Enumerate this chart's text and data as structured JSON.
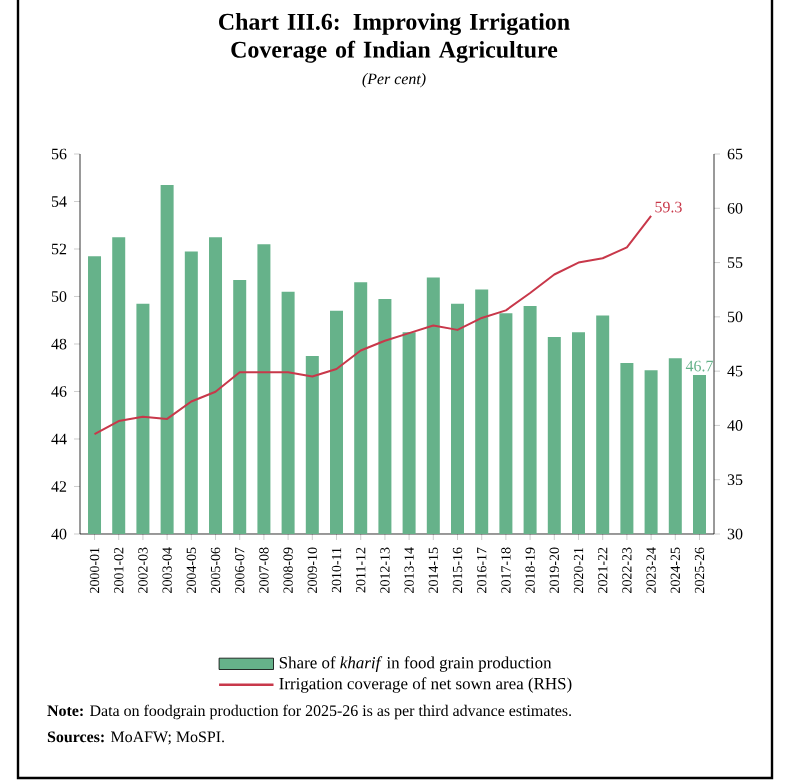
{
  "chart_data": {
    "type": "bar",
    "title": "Chart III.6: Improving Irrigation Coverage of Indian Agriculture",
    "subtitle": "(Per cent)",
    "categories": [
      "2000-01",
      "2001-02",
      "2002-03",
      "2003-04",
      "2004-05",
      "2005-06",
      "2006-07",
      "2007-08",
      "2008-09",
      "2009-10",
      "2010-11",
      "2011-12",
      "2012-13",
      "2013-14",
      "2014-15",
      "2015-16",
      "2016-17",
      "2017-18",
      "2018-19",
      "2019-20",
      "2020-21",
      "2021-22",
      "2022-23",
      "2023-24",
      "2024-25",
      "2025-26"
    ],
    "series": [
      {
        "name": "Share of *kharif* in food grain production",
        "color": "#66b28a",
        "values": [
          51.7,
          52.5,
          49.7,
          54.7,
          51.9,
          52.5,
          50.7,
          52.2,
          50.2,
          47.5,
          49.4,
          50.6,
          49.9,
          48.5,
          50.8,
          49.7,
          50.3,
          49.3,
          49.6,
          48.3,
          48.5,
          49.2,
          47.2,
          46.9,
          47.4,
          46.7
        ],
        "value_labels": [
          null,
          null,
          null,
          null,
          null,
          null,
          null,
          null,
          null,
          null,
          null,
          null,
          null,
          null,
          null,
          null,
          null,
          null,
          null,
          null,
          null,
          null,
          null,
          null,
          null,
          "46.7"
        ]
      },
      {
        "name": "Irrigation coverage of net sown area (RHS)",
        "type": "line",
        "axis": "y2",
        "color": "#c8384a",
        "values": [
          39.2,
          40.4,
          40.8,
          40.6,
          42.2,
          43.1,
          44.9,
          44.9,
          44.9,
          44.5,
          45.2,
          46.9,
          47.8,
          48.5,
          49.2,
          48.8,
          49.9,
          50.6,
          52.2,
          53.9,
          55.0,
          55.4,
          56.4,
          59.3,
          null,
          null
        ],
        "value_labels": [
          null,
          null,
          null,
          null,
          null,
          null,
          null,
          null,
          null,
          null,
          null,
          null,
          null,
          null,
          null,
          null,
          null,
          null,
          null,
          null,
          null,
          null,
          null,
          "59.3",
          null,
          null
        ]
      }
    ],
    "ylim": [
      40,
      56
    ],
    "yticks": [
      40,
      42,
      44,
      46,
      48,
      50,
      52,
      54,
      56
    ],
    "y2lim": [
      30,
      65
    ],
    "y2ticks": [
      30,
      35,
      40,
      45,
      50,
      55,
      60,
      65
    ],
    "legend": "bottom",
    "marker": "none",
    "annotations": [
      "**Note:** Data on foodgrain production for 2025-26 is as per third advance estimates.",
      "**Sources:** MoAFW; MoSPI."
    ]
  }
}
